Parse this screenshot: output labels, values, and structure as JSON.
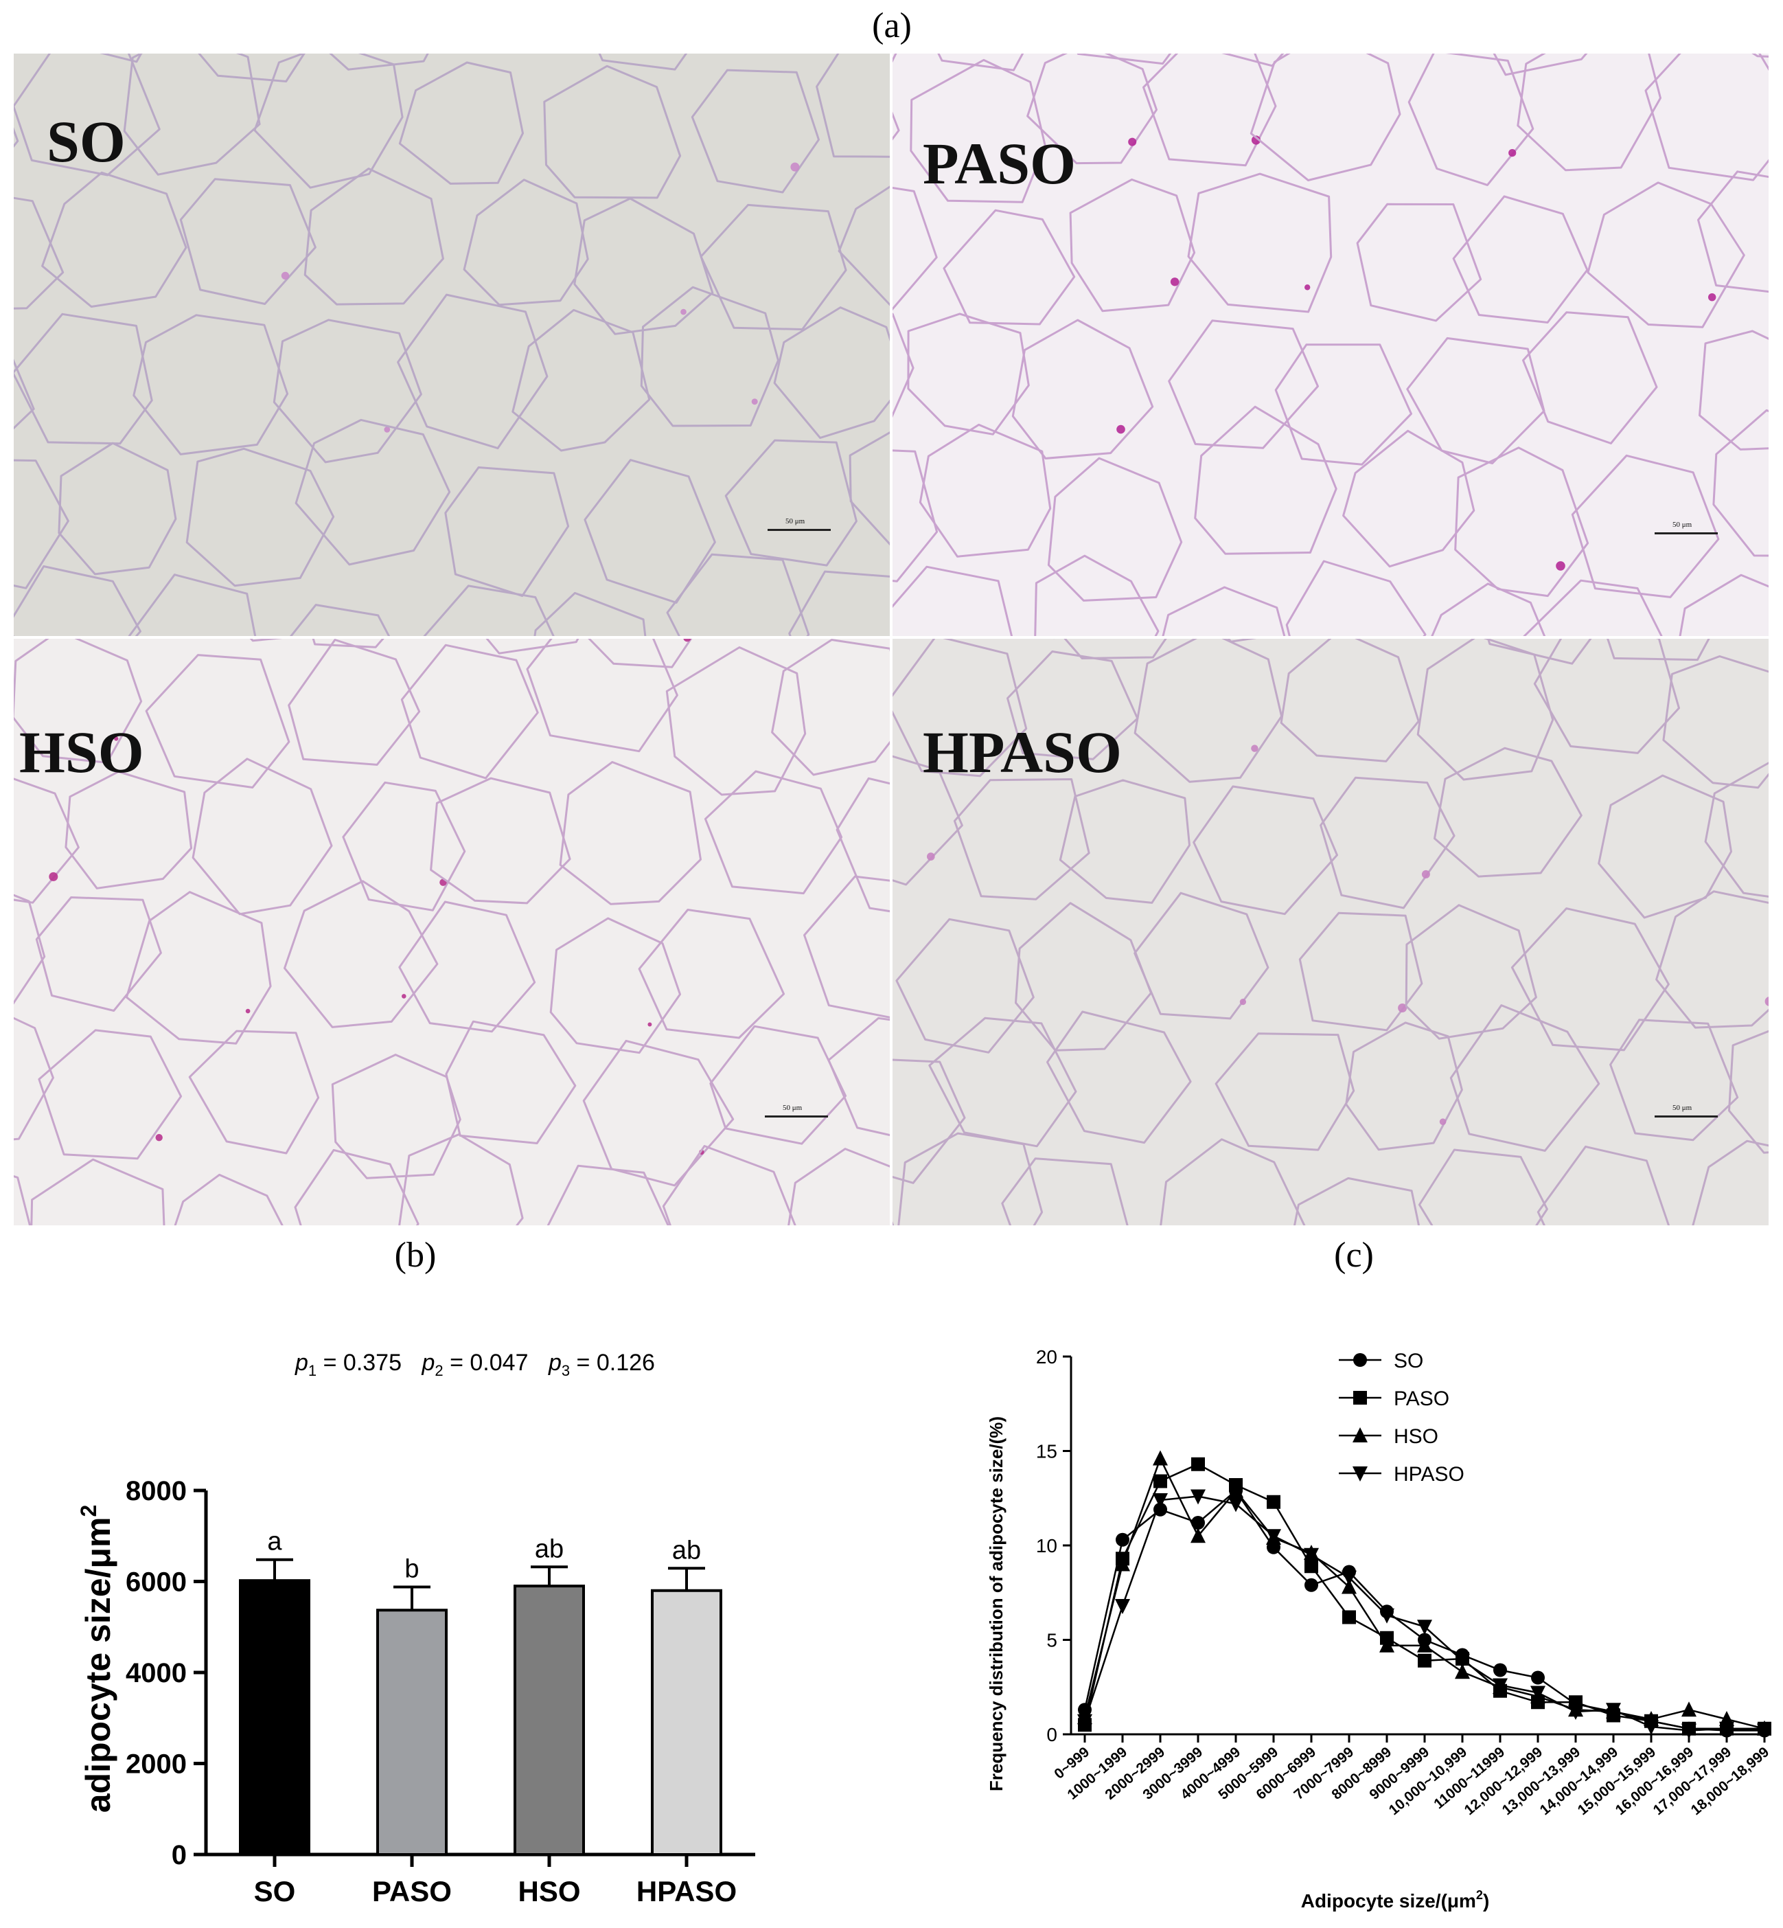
{
  "panels": {
    "a": "(a)",
    "b": "(b)",
    "c": "(c)"
  },
  "micrographs": [
    {
      "label": "SO",
      "scale": "50 μm",
      "tint": "#dcdbd6",
      "wall": "#b9a9c6",
      "accent": "#c98ac9"
    },
    {
      "label": "PASO",
      "scale": "50 μm",
      "tint": "#f3eef3",
      "wall": "#c9a3cf",
      "accent": "#b52a97"
    },
    {
      "label": "HSO",
      "scale": "50 μm",
      "tint": "#f1eeee",
      "wall": "#c7a6cc",
      "accent": "#b8348f"
    },
    {
      "label": "HPASO",
      "scale": "50 μm",
      "tint": "#e6e4e2",
      "wall": "#c0a9c7",
      "accent": "#c684c2"
    }
  ],
  "chart_data": [
    {
      "type": "bar",
      "annotation": {
        "p1": "p",
        "p1_sub": "1",
        "p1_val": " = 0.375",
        "p2": "p",
        "p2_sub": "2",
        "p2_val": " = 0.047",
        "p3": "p",
        "p3_sub": "3",
        "p3_val": " = 0.126"
      },
      "ylabel": "adipocyte size/μm",
      "ylabel_sup": "2",
      "ylim": [
        0,
        8000
      ],
      "yticks": [
        0,
        2000,
        4000,
        6000,
        8000
      ],
      "categories": [
        "SO",
        "PASO",
        "HSO",
        "HPASO"
      ],
      "values": [
        6020,
        5370,
        5900,
        5800
      ],
      "errors": [
        460,
        510,
        420,
        490
      ],
      "letters": [
        "a",
        "b",
        "ab",
        "ab"
      ],
      "colors": [
        "#000000",
        "#9d9fa3",
        "#7d7d7d",
        "#d5d5d5"
      ]
    },
    {
      "type": "line",
      "ylabel": "Frequency distribution of adipocyte size/(%)",
      "xlabel": "Adipocyte size/(μm",
      "xlabel_sup": "2",
      "xlabel_end": ")",
      "ylim": [
        0,
        20
      ],
      "yticks": [
        0,
        5,
        10,
        15,
        20
      ],
      "categories": [
        "0~999",
        "1000~1999",
        "2000~2999",
        "3000~3999",
        "4000~4999",
        "5000~5999",
        "6000~6999",
        "7000~7999",
        "8000~8999",
        "9000~9999",
        "10,000~10,999",
        "11000~11999",
        "12,000~12,999",
        "13,000~13,999",
        "14,000~14,999",
        "15,000~15,999",
        "16,000~16,999",
        "17,000~17,999",
        "18,000~18,999"
      ],
      "series": [
        {
          "name": "SO",
          "marker": "circle",
          "values": [
            1.3,
            10.3,
            11.9,
            11.2,
            12.9,
            9.9,
            7.9,
            8.6,
            6.5,
            5.0,
            4.2,
            3.4,
            3.0,
            1.6,
            1.2,
            0.7,
            0.3,
            0.2,
            0.2
          ]
        },
        {
          "name": "PASO",
          "marker": "square",
          "values": [
            0.5,
            9.3,
            13.4,
            14.3,
            13.2,
            12.3,
            8.9,
            6.2,
            5.1,
            3.9,
            4.0,
            2.3,
            1.7,
            1.7,
            1.0,
            0.7,
            0.3,
            0.3,
            0.3
          ]
        },
        {
          "name": "HSO",
          "marker": "triangle-up",
          "values": [
            0.9,
            9.0,
            14.6,
            10.5,
            12.9,
            10.4,
            9.6,
            7.8,
            4.7,
            4.7,
            3.3,
            2.5,
            2.0,
            1.3,
            1.2,
            0.8,
            1.3,
            0.8,
            0.3
          ]
        },
        {
          "name": "HPASO",
          "marker": "triangle-down",
          "values": [
            0.7,
            6.8,
            12.4,
            12.6,
            12.2,
            10.5,
            9.5,
            8.3,
            6.3,
            5.7,
            3.9,
            2.6,
            2.2,
            1.2,
            1.3,
            0.4,
            0.2,
            0.3,
            0.2
          ]
        }
      ]
    }
  ]
}
